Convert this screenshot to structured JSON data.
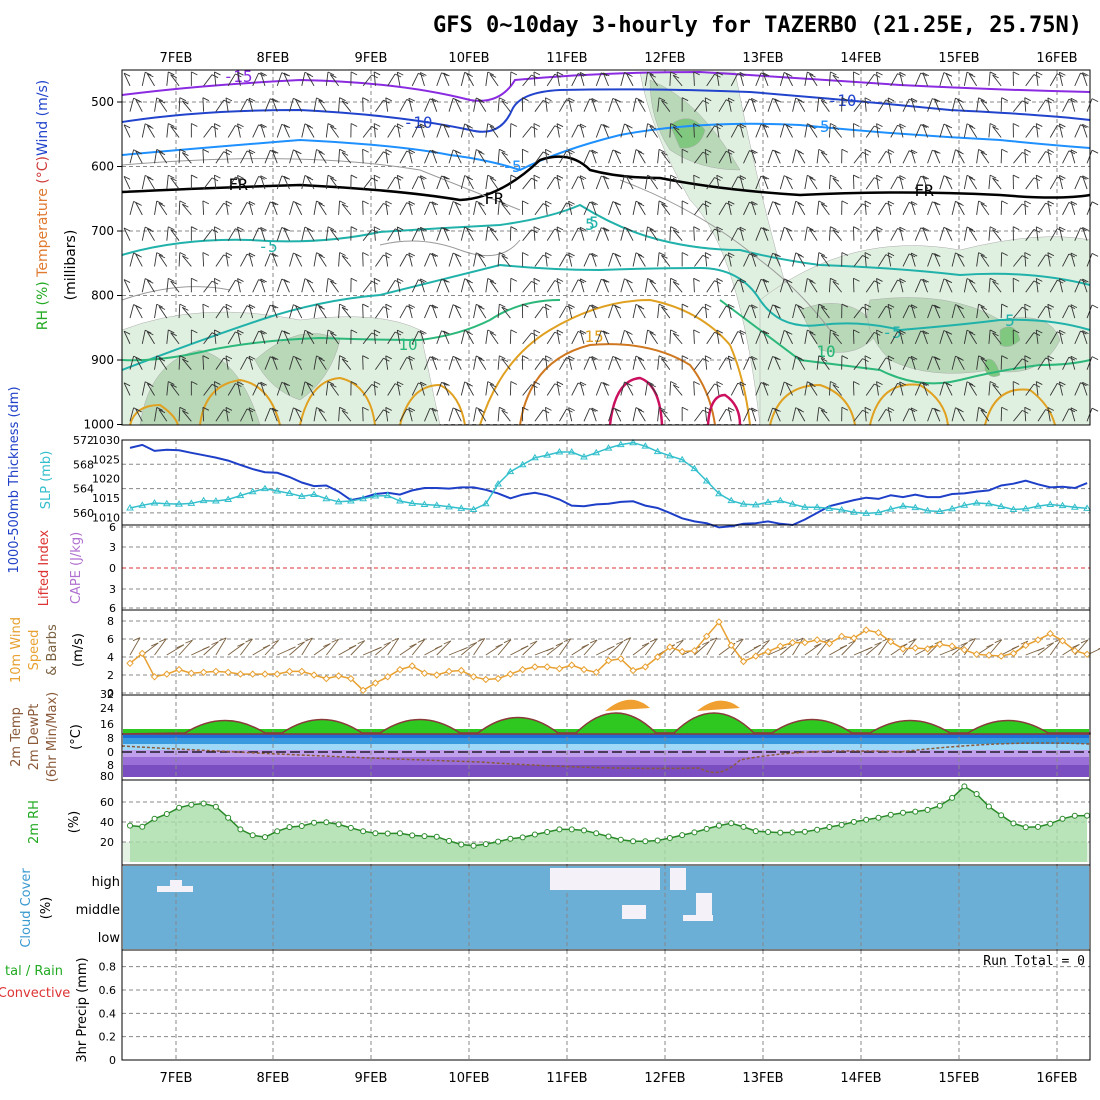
{
  "title": "GFS 0~10day 3-hourly for TAZERBO (21.25E, 25.75N)",
  "dates": [
    "7FEB",
    "8FEB",
    "9FEB",
    "10FEB",
    "11FEB",
    "12FEB",
    "13FEB",
    "14FEB",
    "15FEB",
    "16FEB"
  ],
  "colors": {
    "grid": "#888888",
    "rh_fill_light": "#e0f0e0",
    "rh_fill_mid": "#b8d8b8",
    "rh_fill_dark": "#80c880",
    "thickness": "#1e3fc8",
    "slp": "#33bfcc",
    "lifted_index": "#dd3333",
    "wind10": "#e8a030",
    "barb": "#7a6040",
    "rh2m_line": "#2a8a2a",
    "cloud_bg": "#6baed6",
    "cloud_cell": "#f4f2f8",
    "dewpoint": "#8a5a3a"
  },
  "upper": {
    "y_label_parts": [
      "RH (%)",
      " Temperature ",
      "(°C)",
      "Wind (m/s)"
    ],
    "y_label_sub": "(millibars)",
    "y_ticks": [
      500,
      600,
      700,
      800,
      900,
      1000
    ],
    "contour_labels": [
      "-15",
      "-10",
      "-10",
      "-5",
      "-5",
      "FR",
      "FR",
      "FR",
      "-5",
      "-5",
      "5",
      "5",
      "10",
      "10",
      "15",
      "5",
      "10"
    ]
  },
  "panel2": {
    "label_left": "1000-500mb Thickness (dm)",
    "label_right": "SLP (mb)",
    "left_ticks": [
      "572",
      "568",
      "564",
      "560"
    ],
    "right_ticks": [
      "1030",
      "1025",
      "1020",
      "1015",
      "1010"
    ]
  },
  "panel3": {
    "label_left": "Lifted Index",
    "label_right": "CAPE (J/kg)",
    "ticks": [
      "6",
      "3",
      "0",
      "3",
      "6"
    ]
  },
  "panel4": {
    "label_a": "10m Wind",
    "label_b": "Speed",
    "label_c": "& Barbs",
    "units": "(m/s)",
    "ticks": [
      "8",
      "6",
      "4",
      "2",
      "0"
    ]
  },
  "panel5": {
    "label_a": "2m Temp",
    "label_b": "2m DewPt",
    "label_c": "(6hr Min/Max)",
    "units": "(°C)",
    "ticks": [
      "32",
      "24",
      "16",
      "8",
      "0",
      "8",
      "80"
    ]
  },
  "panel6": {
    "label": "2m RH",
    "units": "(%)",
    "ticks": [
      "60",
      "40",
      "20"
    ]
  },
  "panel7": {
    "label": "Cloud Cover",
    "units": "(%)",
    "levels": [
      "high",
      "middle",
      "low"
    ]
  },
  "panel8": {
    "label_a": "tal / Rain",
    "label_b": "Convective",
    "label_c": "3hr Precip (mm)",
    "run_total": "Run Total = 0",
    "ticks": [
      "0.8",
      "0.6",
      "0.4",
      "0.2",
      "0"
    ]
  },
  "chart_data": [
    {
      "type": "line",
      "title": "1000-500mb Thickness (dm) / SLP (mb)",
      "series": [
        {
          "name": "1000-500mb Thickness (dm)",
          "axis": "left",
          "values": [
            570.7,
            571.2,
            570.2,
            570.4,
            570.3,
            569.9,
            569.5,
            569.1,
            568.6,
            567.9,
            567.2,
            566.7,
            566.6,
            565.9,
            565.0,
            564.4,
            564.5,
            563.5,
            562.1,
            562.5,
            563.1,
            563.3,
            563.0,
            563.7,
            564.1,
            564.1,
            564.0,
            564.2,
            564.2,
            563.8,
            563.2,
            562.4,
            563.0,
            563.3,
            562.9,
            562.2,
            561.2,
            561.1,
            561.4,
            561.5,
            561.8,
            561.9,
            561.2,
            560.8,
            560.0,
            559.1,
            558.6,
            558.3,
            557.6,
            557.8,
            558.2,
            558.3,
            558.6,
            558.2,
            558.0,
            558.9,
            560.0,
            561.1,
            561.6,
            562.1,
            562.5,
            562.3,
            562.9,
            562.6,
            563.0,
            562.6,
            562.6,
            563.1,
            563.2,
            563.5,
            563.7,
            564.5,
            564.8,
            565.3,
            564.7,
            564.2,
            564.3,
            564.1,
            564.9
          ]
        },
        {
          "name": "SLP (mb)",
          "axis": "right",
          "values": [
            1012.4,
            1013.1,
            1013.7,
            1013.5,
            1013.4,
            1013.6,
            1014.3,
            1014.2,
            1014.6,
            1015.6,
            1016.6,
            1017.4,
            1016.8,
            1016.2,
            1015.4,
            1015.9,
            1014.8,
            1014.0,
            1014.2,
            1014.8,
            1015.5,
            1015.6,
            1014.2,
            1013.6,
            1013.3,
            1013.1,
            1012.7,
            1012.3,
            1012.0,
            1013.5,
            1018.6,
            1021.8,
            1023.6,
            1025.4,
            1026.1,
            1026.9,
            1026.9,
            1025.6,
            1026.7,
            1027.9,
            1028.8,
            1029.3,
            1028.4,
            1027.0,
            1025.9,
            1024.9,
            1022.6,
            1019.4,
            1016.1,
            1014.3,
            1013.4,
            1013.2,
            1013.9,
            1014.3,
            1013.4,
            1012.6,
            1012.6,
            1012.3,
            1011.9,
            1011.3,
            1011.0,
            1011.2,
            1012.1,
            1012.9,
            1012.5,
            1011.7,
            1011.5,
            1012.2,
            1013.1,
            1013.7,
            1013.5,
            1012.8,
            1012.0,
            1012.2,
            1012.9,
            1013.3,
            1013.0,
            1012.6,
            1012.3
          ]
        }
      ],
      "ylim_left": [
        558,
        572
      ],
      "ylim_right": [
        1008,
        1030
      ]
    },
    {
      "type": "line",
      "title": "10m Wind Speed (m/s)",
      "series": [
        {
          "name": "10m Wind Speed",
          "values": [
            3.3,
            4.4,
            1.8,
            2.1,
            2.6,
            2.2,
            2.3,
            2.4,
            2.3,
            2.1,
            2.1,
            2.1,
            2.1,
            2.4,
            2.4,
            2.0,
            1.6,
            1.9,
            1.6,
            0.3,
            1.1,
            1.8,
            2.6,
            3.0,
            2.2,
            2.0,
            2.4,
            2.5,
            1.8,
            1.5,
            1.6,
            2.1,
            2.6,
            2.9,
            2.9,
            2.7,
            3.1,
            2.6,
            2.3,
            3.6,
            3.8,
            2.5,
            2.9,
            4.0,
            5.1,
            4.6,
            4.7,
            6.3,
            7.9,
            5.3,
            3.5,
            4.1,
            4.6,
            5.2,
            5.6,
            5.6,
            5.9,
            5.5,
            6.3,
            6.1,
            7.0,
            6.7,
            5.7,
            4.9,
            5.0,
            4.9,
            5.4,
            5.2,
            4.8,
            4.3,
            4.2,
            4.1,
            4.4,
            5.3,
            5.9,
            6.6,
            5.8,
            4.7,
            4.3
          ]
        }
      ],
      "ylim": [
        0,
        9
      ]
    },
    {
      "type": "area",
      "title": "2m RH (%)",
      "series": [
        {
          "name": "2m RH",
          "values": [
            36.4,
            35.3,
            43.2,
            48.0,
            54.3,
            57.3,
            58.5,
            55.3,
            44.3,
            32.6,
            26.7,
            24.9,
            30.7,
            34.9,
            36.0,
            39.2,
            39.8,
            37.6,
            34.1,
            30.8,
            28.8,
            28.5,
            28.7,
            26.6,
            25.9,
            25.3,
            21.1,
            17.5,
            16.3,
            17.9,
            20.4,
            23.3,
            24.6,
            27.5,
            30.0,
            32.6,
            32.6,
            31.6,
            28.7,
            25.5,
            22.3,
            20.7,
            20.7,
            21.5,
            24.0,
            26.9,
            29.6,
            33.1,
            36.4,
            38.7,
            35.1,
            30.9,
            30.0,
            29.4,
            29.6,
            30.2,
            32.3,
            35.0,
            37.1,
            40.1,
            42.3,
            44.3,
            47.2,
            49.3,
            50.4,
            52.1,
            56.3,
            64.1,
            75.6,
            68.0,
            55.5,
            46.8,
            38.6,
            34.8,
            35.1,
            38.3,
            43.2,
            46.3,
            46.4
          ]
        }
      ],
      "ylim": [
        0,
        80
      ]
    }
  ]
}
